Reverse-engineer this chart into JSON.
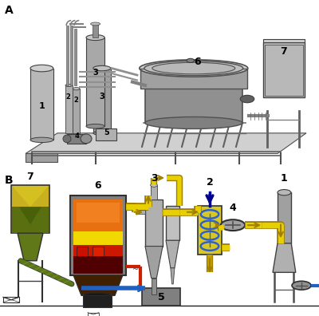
{
  "fig_width": 4.0,
  "fig_height": 3.96,
  "dpi": 100,
  "bg_color": "#ffffff",
  "yellow_pipe": "#e8d000",
  "yellow_dark": "#b89000",
  "yellow_fill": "#e8d840",
  "blue_pipe": "#2060c0",
  "dark_blue": "#1030a0",
  "gasifier_orange": "#e87010",
  "gasifier_yellow": "#f0d800",
  "gasifier_red": "#cc1800",
  "gasifier_dark": "#500000",
  "silos_yellow": "#d4b820",
  "silos_green": "#607010",
  "conveyor_green": "#486010",
  "heat_ex_yellow": "#d8c820",
  "heat_ex_blue": "#3060cc",
  "gray1": "#909090",
  "gray2": "#b0b0b0",
  "gray3": "#c8c8c8",
  "gray4": "#787878",
  "dark_gray": "#505050",
  "scrubber_gray": "#a0a0a0"
}
